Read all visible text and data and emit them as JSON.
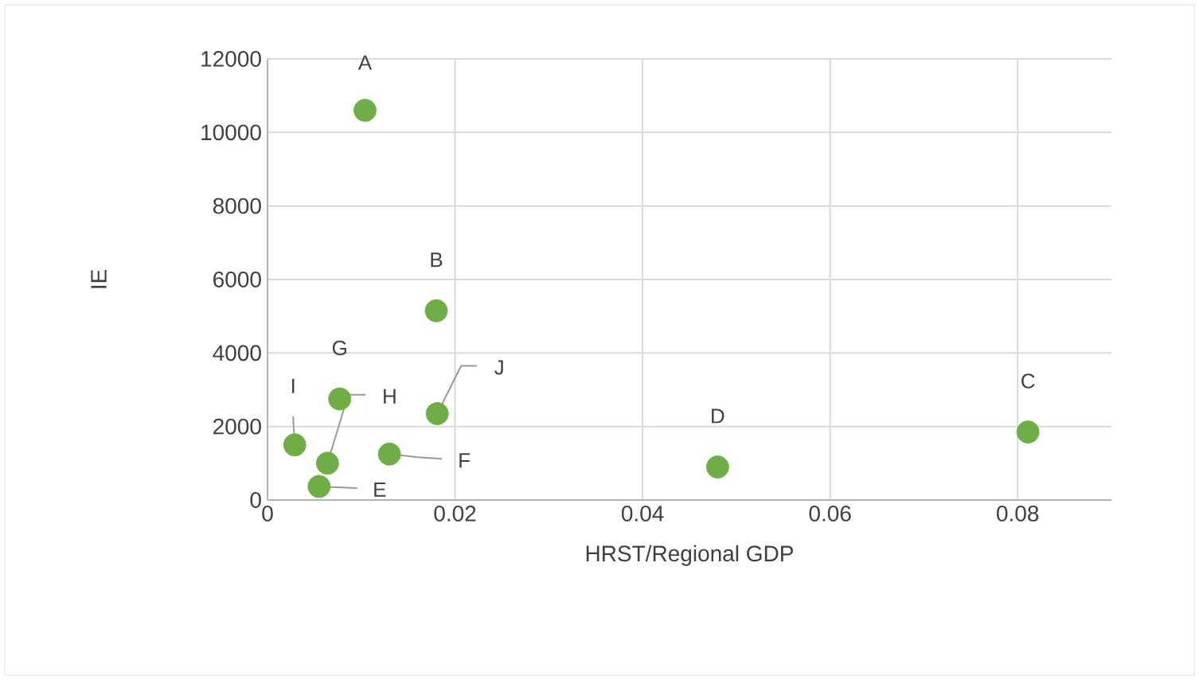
{
  "chart_data": {
    "type": "scatter",
    "xlabel": "HRST/Regional GDP",
    "ylabel": "IE",
    "x": [
      0.0104,
      0.018,
      0.0811,
      0.048,
      0.0055,
      0.013,
      0.0077,
      0.0064,
      0.0029,
      0.0181
    ],
    "values": [
      10600,
      5150,
      1850,
      900,
      370,
      1250,
      2750,
      1000,
      1500,
      2350
    ],
    "color": "#70ad47",
    "grid": true,
    "xlim": [
      0,
      0.09
    ],
    "xticks": [
      0,
      0.02,
      0.04,
      0.06,
      0.08
    ],
    "ylim": [
      0,
      12000
    ],
    "yticks": [
      0,
      2000,
      4000,
      6000,
      8000,
      10000,
      12000
    ],
    "annotations": [
      {
        "text": "A",
        "x": 0.0104,
        "y": 10600
      },
      {
        "text": "B",
        "x": 0.018,
        "y": 5150
      },
      {
        "text": "C",
        "x": 0.0811,
        "y": 1850
      },
      {
        "text": "D",
        "x": 0.048,
        "y": 900
      },
      {
        "text": "E",
        "x": 0.0055,
        "y": 370
      },
      {
        "text": "F",
        "x": 0.013,
        "y": 1250
      },
      {
        "text": "G",
        "x": 0.0077,
        "y": 2750
      },
      {
        "text": "H",
        "x": 0.0064,
        "y": 1000
      },
      {
        "text": "I",
        "x": 0.0029,
        "y": 1500
      },
      {
        "text": "J",
        "x": 0.0181,
        "y": 2350
      }
    ]
  }
}
